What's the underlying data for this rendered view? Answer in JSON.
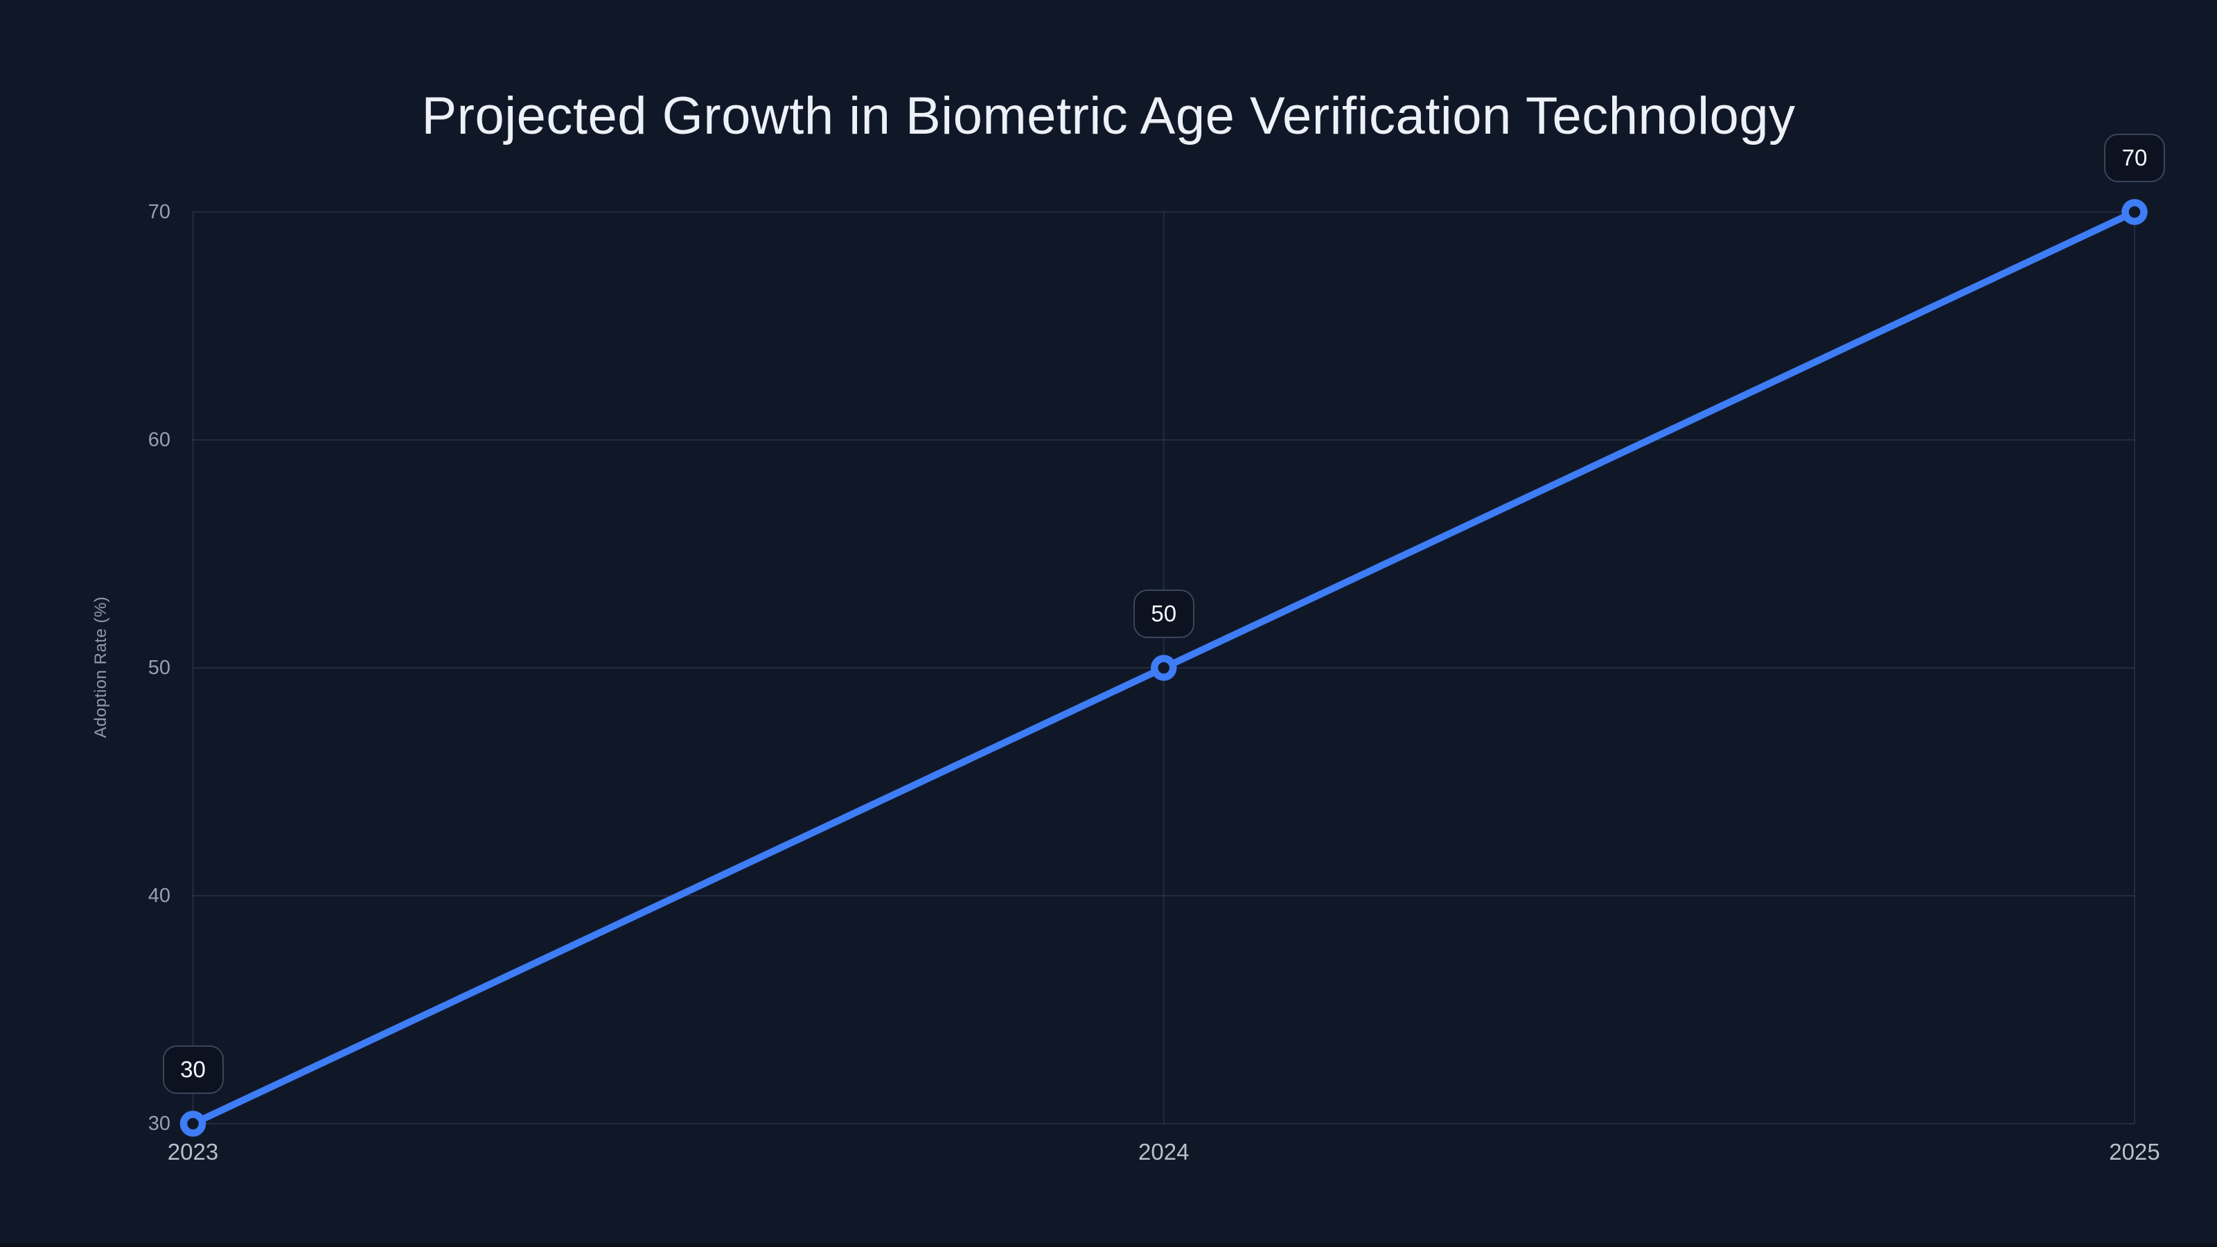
{
  "colors": {
    "background": "#101828",
    "strip": "#0a0f1b",
    "line": "#3e7df6",
    "grid": "rgba(148,163,184,0.15)",
    "ytick": "#94a0b2",
    "xtick": "#b7c0cd",
    "title": "#edf1f7",
    "axistitle": "#8f99ab",
    "labeltext": "#f6f9fd",
    "labelborder": "#3a465c",
    "labelfill": "#0c1220",
    "marker_fill": "#101828"
  },
  "chart_data": {
    "type": "line",
    "title": "Projected Growth in Biometric Age Verification Technology",
    "x": [
      "2023",
      "2024",
      "2025"
    ],
    "series": [
      {
        "name": "Adoption Rate",
        "values": [
          30,
          50,
          70
        ]
      }
    ],
    "point_labels": [
      "30",
      "50",
      "70"
    ],
    "xlabel": "",
    "ylabel": "Adoption Rate (%)",
    "ylim": [
      30,
      70
    ],
    "yticks": [
      "30",
      "40",
      "50",
      "60",
      "70"
    ],
    "grid": "horizontal and vertical faint gridlines",
    "legend": "none",
    "marker_style": "open-circle"
  }
}
